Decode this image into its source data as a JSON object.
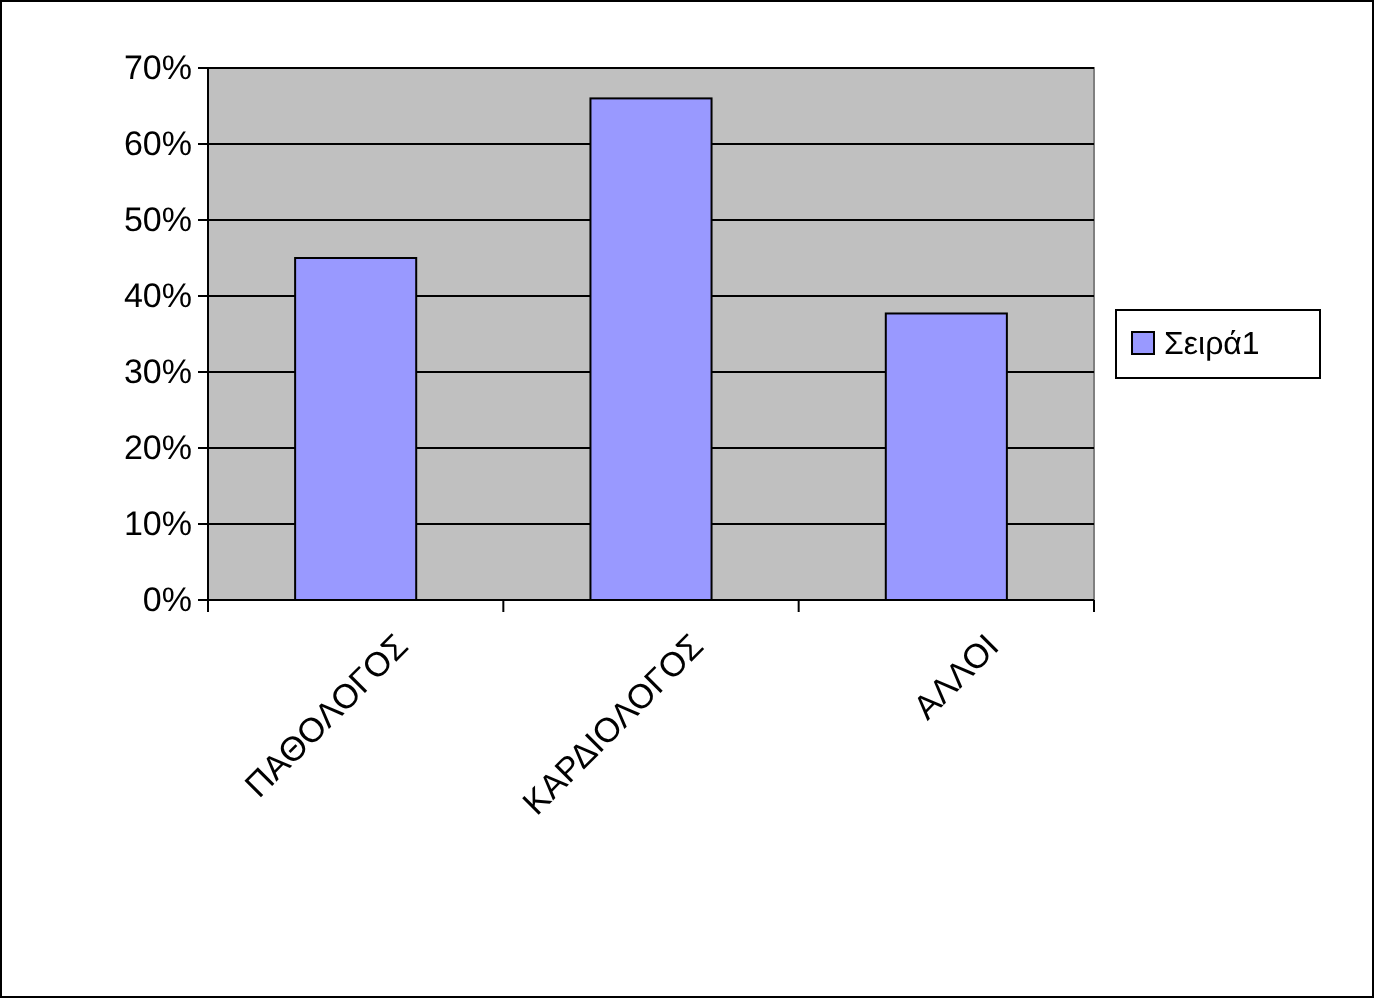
{
  "chart_data": {
    "type": "bar",
    "categories": [
      "ΠΑΘΟΛΟΓΟΣ",
      "ΚΑΡΔΙΟΛΟΓΟΣ",
      "ΑΛΛΟΙ"
    ],
    "series": [
      {
        "name": "Σειρά1",
        "color": "#9999ff",
        "values": [
          45,
          66,
          37.7
        ]
      }
    ],
    "ylim": [
      0,
      70
    ],
    "yticks": [
      {
        "value": 0,
        "label": "0%"
      },
      {
        "value": 10,
        "label": "10%"
      },
      {
        "value": 20,
        "label": "20%"
      },
      {
        "value": 30,
        "label": "30%"
      },
      {
        "value": 40,
        "label": "40%"
      },
      {
        "value": 50,
        "label": "50%"
      },
      {
        "value": 60,
        "label": "60%"
      },
      {
        "value": 70,
        "label": "70%"
      }
    ],
    "grid": "y",
    "legend": "right"
  }
}
